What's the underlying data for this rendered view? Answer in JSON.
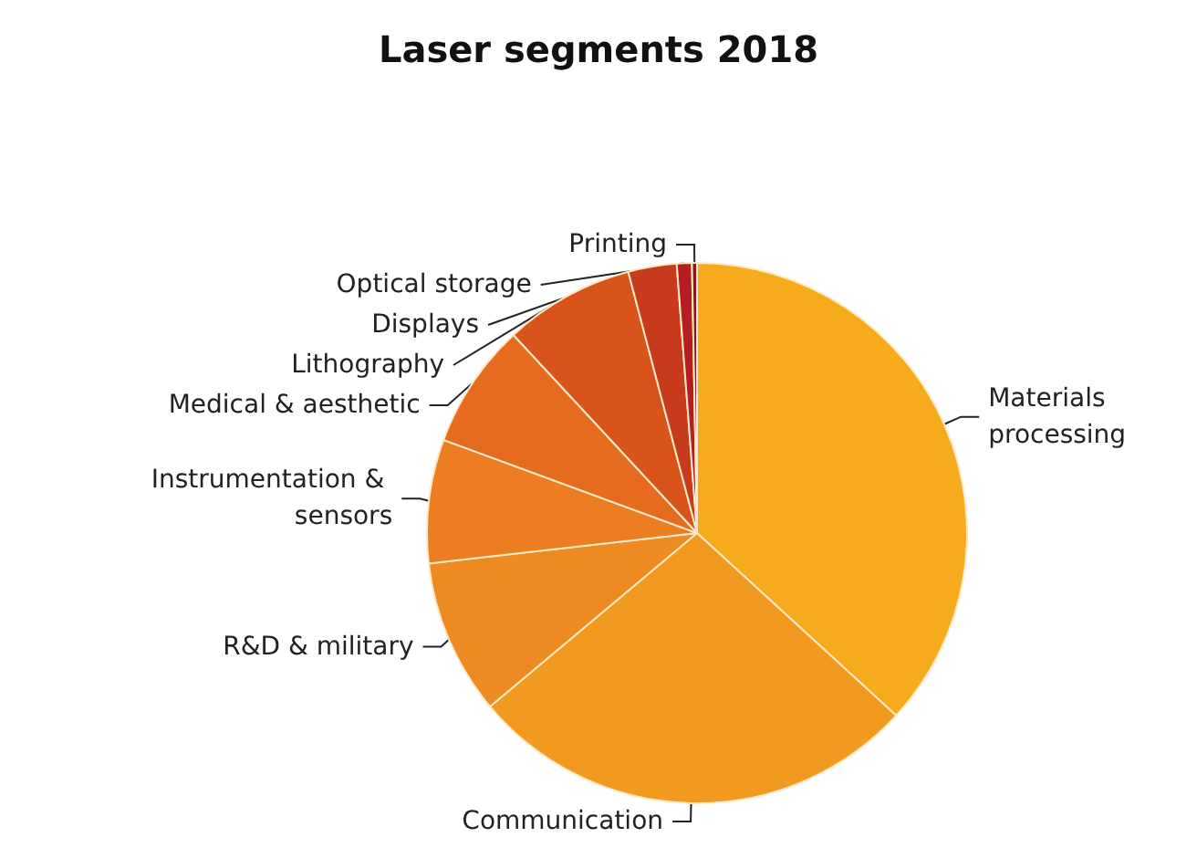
{
  "chart_data": {
    "type": "pie",
    "title": "Laser segments 2018",
    "categories": [
      "Materials processing",
      "Communication",
      "R&D & military",
      "Instrumentation & sensors",
      "Medical & aesthetic",
      "Lithography",
      "Displays",
      "Optical storage",
      "Printing"
    ],
    "values": [
      36.8,
      27.1,
      9.3,
      7.4,
      7.5,
      7.8,
      2.9,
      0.9,
      0.3
    ],
    "colors": [
      "#f6ab1c",
      "#f29a1f",
      "#ee8a22",
      "#ec7d22",
      "#e66b1f",
      "#d9541b",
      "#c83a1c",
      "#b51e20",
      "#8e1518"
    ],
    "legend": false
  }
}
